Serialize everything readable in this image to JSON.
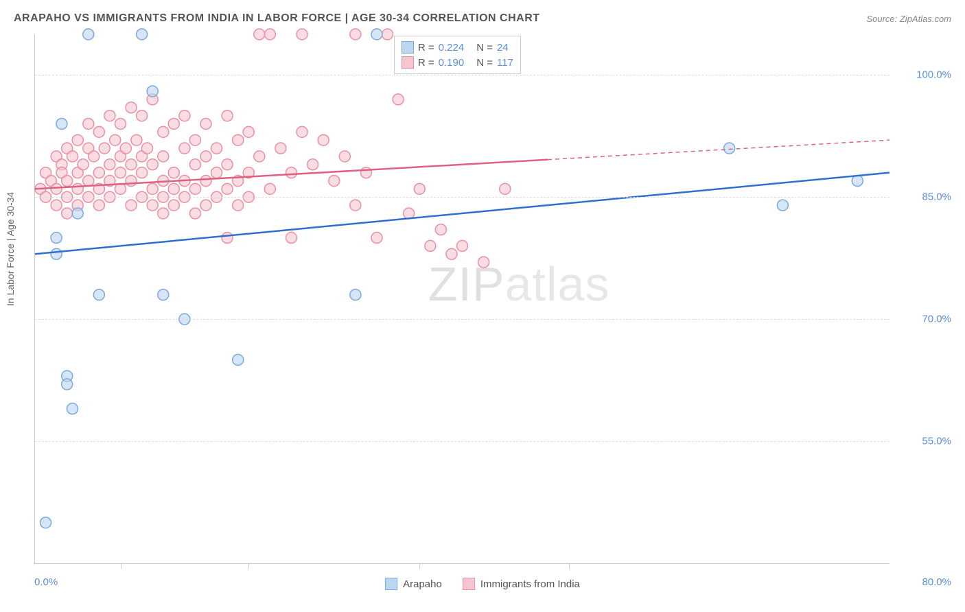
{
  "title": "ARAPAHO VS IMMIGRANTS FROM INDIA IN LABOR FORCE | AGE 30-34 CORRELATION CHART",
  "source": "Source: ZipAtlas.com",
  "ylabel": "In Labor Force | Age 30-34",
  "watermark_a": "ZIP",
  "watermark_b": "atlas",
  "xlim": [
    0,
    80
  ],
  "ylim": [
    40,
    105
  ],
  "yticks": [
    {
      "v": 55,
      "label": "55.0%"
    },
    {
      "v": 70,
      "label": "70.0%"
    },
    {
      "v": 85,
      "label": "85.0%"
    },
    {
      "v": 100,
      "label": "100.0%"
    }
  ],
  "xticks_major": [
    0,
    80
  ],
  "xtick_labels": [
    {
      "v": 0,
      "label": "0.0%"
    },
    {
      "v": 80,
      "label": "80.0%"
    }
  ],
  "xticks_minor": [
    8,
    20,
    36,
    50
  ],
  "legend_top": {
    "rows": [
      {
        "color_fill": "#bcd5f0",
        "color_stroke": "#7aa8de",
        "r_label": "R =",
        "r_val": "0.224",
        "n_label": "N =",
        "n_val": "24"
      },
      {
        "color_fill": "#f6c6d0",
        "color_stroke": "#e98fa3",
        "r_label": "R =",
        "r_val": "0.190",
        "n_label": "N =",
        "n_val": "117"
      }
    ]
  },
  "legend_bottom": [
    {
      "fill": "#bcd5f0",
      "stroke": "#7aa8de",
      "label": "Arapaho"
    },
    {
      "fill": "#f6c6d0",
      "stroke": "#e98fa3",
      "label": "Immigrants from India"
    }
  ],
  "series": {
    "arapaho": {
      "fill": "#bcd5f0",
      "stroke": "#7aa8de",
      "marker_r": 8,
      "points": [
        [
          1,
          45
        ],
        [
          2,
          80
        ],
        [
          2,
          78
        ],
        [
          2.5,
          94
        ],
        [
          3,
          63
        ],
        [
          3,
          62
        ],
        [
          3.5,
          59
        ],
        [
          4,
          83
        ],
        [
          5,
          105
        ],
        [
          6,
          73
        ],
        [
          10,
          105
        ],
        [
          12,
          73
        ],
        [
          11,
          98
        ],
        [
          14,
          70
        ],
        [
          19,
          65
        ],
        [
          30,
          73
        ],
        [
          32,
          105
        ],
        [
          65,
          91
        ],
        [
          70,
          84
        ],
        [
          77,
          87
        ]
      ],
      "trend": {
        "x1": 0,
        "y1": 78,
        "x2": 80,
        "y2": 88,
        "color": "#2f6fd0",
        "solid_to": 80
      }
    },
    "india": {
      "fill": "#f6c6d0",
      "stroke": "#e98fa3",
      "marker_r": 8,
      "points": [
        [
          0.5,
          86
        ],
        [
          1,
          88
        ],
        [
          1,
          85
        ],
        [
          1.5,
          87
        ],
        [
          2,
          90
        ],
        [
          2,
          86
        ],
        [
          2,
          84
        ],
        [
          2.5,
          89
        ],
        [
          2.5,
          88
        ],
        [
          3,
          91
        ],
        [
          3,
          87
        ],
        [
          3,
          85
        ],
        [
          3,
          83
        ],
        [
          3.5,
          90
        ],
        [
          4,
          92
        ],
        [
          4,
          88
        ],
        [
          4,
          86
        ],
        [
          4,
          84
        ],
        [
          4.5,
          89
        ],
        [
          5,
          94
        ],
        [
          5,
          91
        ],
        [
          5,
          87
        ],
        [
          5,
          85
        ],
        [
          5.5,
          90
        ],
        [
          6,
          93
        ],
        [
          6,
          88
        ],
        [
          6,
          86
        ],
        [
          6,
          84
        ],
        [
          6.5,
          91
        ],
        [
          7,
          95
        ],
        [
          7,
          89
        ],
        [
          7,
          87
        ],
        [
          7,
          85
        ],
        [
          7.5,
          92
        ],
        [
          8,
          94
        ],
        [
          8,
          90
        ],
        [
          8,
          88
        ],
        [
          8,
          86
        ],
        [
          8.5,
          91
        ],
        [
          9,
          96
        ],
        [
          9,
          89
        ],
        [
          9,
          87
        ],
        [
          9,
          84
        ],
        [
          9.5,
          92
        ],
        [
          10,
          95
        ],
        [
          10,
          90
        ],
        [
          10,
          88
        ],
        [
          10,
          85
        ],
        [
          10.5,
          91
        ],
        [
          11,
          97
        ],
        [
          11,
          89
        ],
        [
          11,
          86
        ],
        [
          11,
          84
        ],
        [
          12,
          93
        ],
        [
          12,
          90
        ],
        [
          12,
          87
        ],
        [
          12,
          85
        ],
        [
          12,
          83
        ],
        [
          13,
          94
        ],
        [
          13,
          88
        ],
        [
          13,
          86
        ],
        [
          13,
          84
        ],
        [
          14,
          95
        ],
        [
          14,
          91
        ],
        [
          14,
          87
        ],
        [
          14,
          85
        ],
        [
          15,
          92
        ],
        [
          15,
          89
        ],
        [
          15,
          86
        ],
        [
          15,
          83
        ],
        [
          16,
          94
        ],
        [
          16,
          90
        ],
        [
          16,
          87
        ],
        [
          16,
          84
        ],
        [
          17,
          91
        ],
        [
          17,
          88
        ],
        [
          17,
          85
        ],
        [
          18,
          95
        ],
        [
          18,
          89
        ],
        [
          18,
          86
        ],
        [
          18,
          80
        ],
        [
          19,
          92
        ],
        [
          19,
          87
        ],
        [
          19,
          84
        ],
        [
          20,
          93
        ],
        [
          20,
          88
        ],
        [
          20,
          85
        ],
        [
          21,
          105
        ],
        [
          21,
          90
        ],
        [
          22,
          105
        ],
        [
          22,
          86
        ],
        [
          23,
          91
        ],
        [
          24,
          88
        ],
        [
          24,
          80
        ],
        [
          25,
          105
        ],
        [
          25,
          93
        ],
        [
          26,
          89
        ],
        [
          27,
          92
        ],
        [
          28,
          87
        ],
        [
          29,
          90
        ],
        [
          30,
          105
        ],
        [
          30,
          84
        ],
        [
          31,
          88
        ],
        [
          32,
          80
        ],
        [
          33,
          105
        ],
        [
          34,
          97
        ],
        [
          35,
          83
        ],
        [
          36,
          86
        ],
        [
          37,
          79
        ],
        [
          38,
          81
        ],
        [
          39,
          78
        ],
        [
          40,
          79
        ],
        [
          42,
          77
        ],
        [
          44,
          86
        ]
      ],
      "trend": {
        "x1": 0,
        "y1": 86,
        "x2": 80,
        "y2": 92,
        "color": "#e06080",
        "solid_to": 48
      }
    }
  }
}
